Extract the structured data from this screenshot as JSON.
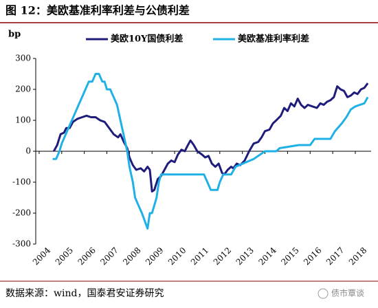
{
  "chart_data": {
    "type": "line",
    "title": "图 12：美欧基准利率利差与公债利差",
    "y_label": "bp",
    "source": "数据来源：wind，国泰君安证券研究",
    "watermark": "债市覃谈",
    "xlim": [
      2003.85,
      2018.7
    ],
    "xticks": [
      2004,
      2005,
      2006,
      2007,
      2008,
      2009,
      2010,
      2011,
      2012,
      2013,
      2014,
      2015,
      2016,
      2017,
      2018
    ],
    "ylim": [
      -300,
      300
    ],
    "yticks": [
      -300,
      -200,
      -100,
      0,
      100,
      200,
      300
    ],
    "series": [
      {
        "name": "美欧10Y国债利差",
        "color": "#1f1c7c",
        "x": [
          2004.65,
          2004.8,
          2004.95,
          2005.1,
          2005.2,
          2005.35,
          2005.5,
          2005.7,
          2005.9,
          2006.1,
          2006.3,
          2006.5,
          2006.7,
          2006.9,
          2007.1,
          2007.3,
          2007.5,
          2007.6,
          2007.75,
          2007.9,
          2008.0,
          2008.15,
          2008.3,
          2008.5,
          2008.65,
          2008.8,
          2008.9,
          2009.0,
          2009.1,
          2009.25,
          2009.4,
          2009.55,
          2009.7,
          2009.85,
          2010.0,
          2010.15,
          2010.3,
          2010.45,
          2010.55,
          2010.7,
          2010.85,
          2011.0,
          2011.2,
          2011.35,
          2011.5,
          2011.65,
          2011.8,
          2011.95,
          2012.1,
          2012.2,
          2012.35,
          2012.5,
          2012.6,
          2012.75,
          2012.9,
          2013.1,
          2013.3,
          2013.5,
          2013.7,
          2013.85,
          2014.0,
          2014.2,
          2014.35,
          2014.5,
          2014.7,
          2014.85,
          2015.0,
          2015.15,
          2015.3,
          2015.45,
          2015.6,
          2015.75,
          2015.9,
          2016.1,
          2016.3,
          2016.45,
          2016.6,
          2016.75,
          2016.9,
          2017.05,
          2017.2,
          2017.35,
          2017.5,
          2017.65,
          2017.8,
          2017.95,
          2018.1,
          2018.25,
          2018.4,
          2018.55
        ],
        "values": [
          0,
          20,
          55,
          60,
          75,
          75,
          95,
          105,
          110,
          115,
          110,
          110,
          100,
          95,
          75,
          55,
          45,
          55,
          30,
          10,
          -20,
          -45,
          -60,
          -55,
          -65,
          -50,
          -60,
          -130,
          -125,
          -90,
          -80,
          -60,
          -40,
          -30,
          -35,
          -10,
          5,
          0,
          15,
          35,
          20,
          0,
          -10,
          -20,
          -15,
          -40,
          -50,
          -40,
          -70,
          -75,
          -60,
          -50,
          -55,
          -40,
          -45,
          -30,
          0,
          25,
          30,
          45,
          65,
          70,
          90,
          100,
          115,
          140,
          130,
          155,
          145,
          170,
          150,
          140,
          150,
          145,
          140,
          155,
          150,
          160,
          165,
          175,
          210,
          200,
          195,
          175,
          180,
          190,
          185,
          200,
          205,
          220
        ]
      },
      {
        "name": "美欧基准利率利差",
        "color": "#1fb1e6",
        "x": [
          2004.6,
          2004.75,
          2004.9,
          2005.0,
          2005.15,
          2005.3,
          2005.45,
          2005.6,
          2005.75,
          2005.9,
          2006.05,
          2006.2,
          2006.35,
          2006.5,
          2006.65,
          2006.8,
          2006.9,
          2007.0,
          2007.15,
          2007.3,
          2007.45,
          2007.6,
          2007.75,
          2007.9,
          2008.0,
          2008.15,
          2008.25,
          2008.4,
          2008.55,
          2008.7,
          2008.8,
          2008.9,
          2009.0,
          2009.1,
          2009.2,
          2009.3,
          2009.4,
          2011.3,
          2011.45,
          2011.6,
          2011.9,
          2012.0,
          2012.15,
          2012.5,
          2012.7,
          2013.5,
          2014.0,
          2014.5,
          2014.65,
          2015.5,
          2016.0,
          2016.2,
          2016.9,
          2017.1,
          2017.4,
          2017.6,
          2017.8,
          2018.0,
          2018.2,
          2018.4,
          2018.55
        ],
        "values": [
          -25,
          -25,
          0,
          25,
          50,
          75,
          100,
          125,
          150,
          175,
          200,
          225,
          225,
          250,
          250,
          225,
          225,
          200,
          200,
          175,
          150,
          100,
          50,
          0,
          -50,
          -100,
          -150,
          -175,
          -200,
          -230,
          -250,
          -200,
          -200,
          -175,
          -150,
          -100,
          -75,
          -75,
          -100,
          -125,
          -125,
          -100,
          -75,
          -75,
          -50,
          -25,
          0,
          0,
          10,
          20,
          20,
          40,
          40,
          65,
          90,
          110,
          135,
          145,
          150,
          155,
          175
        ]
      }
    ]
  }
}
